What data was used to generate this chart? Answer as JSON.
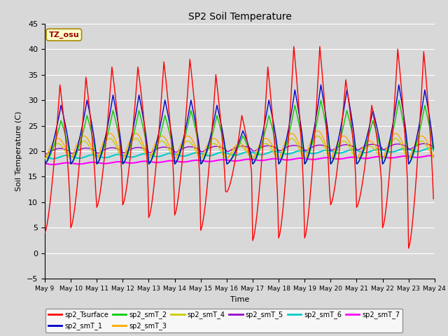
{
  "title": "SP2 Soil Temperature",
  "ylabel": "Soil Temperature (C)",
  "xlabel": "Time",
  "tz_label": "TZ_osu",
  "ylim": [
    -5,
    45
  ],
  "background_color": "#d8d8d8",
  "series_colors": {
    "sp2_Tsurface": "#ff0000",
    "sp2_smT_1": "#0000cc",
    "sp2_smT_2": "#00cc00",
    "sp2_smT_3": "#ffaa00",
    "sp2_smT_4": "#cccc00",
    "sp2_smT_5": "#9900cc",
    "sp2_smT_6": "#00cccc",
    "sp2_smT_7": "#ff00ff"
  },
  "x_tick_labels": [
    "May 9",
    "May 10",
    "May 11",
    "May 12",
    "May 13",
    "May 14",
    "May 15",
    "May 16",
    "May 17",
    "May 18",
    "May 19",
    "May 20",
    "May 21",
    "May 22",
    "May 23",
    "May 24"
  ],
  "yticks": [
    -5,
    0,
    5,
    10,
    15,
    20,
    25,
    30,
    35,
    40,
    45
  ]
}
